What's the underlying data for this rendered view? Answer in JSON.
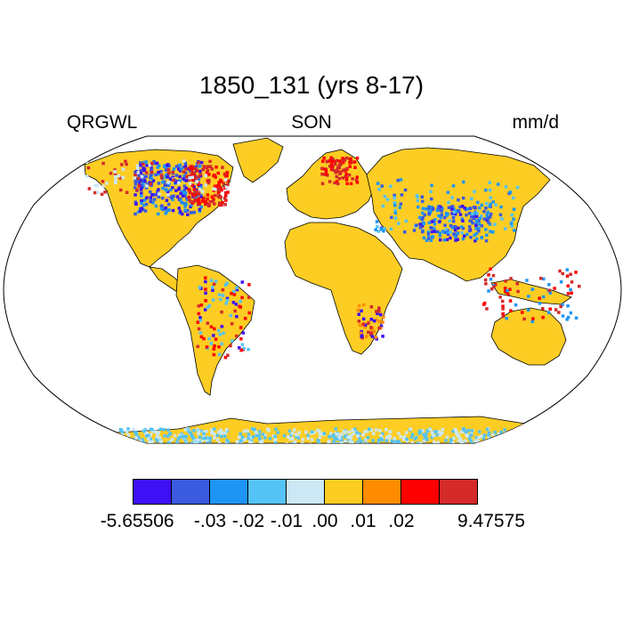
{
  "title": "1850_131 (yrs 8-17)",
  "left_label": "QRGWL",
  "center_label": "SON",
  "right_label": "mm/d",
  "colorbar": {
    "colors": [
      "#3d10f5",
      "#3a5ae0",
      "#1e95f5",
      "#55c3f5",
      "#cce8f5",
      "#fdcd24",
      "#ff8c00",
      "#ff0000",
      "#d42a2a"
    ],
    "labels": [
      "-5.65506",
      "-.03",
      "-.02",
      "-.01",
      ".00",
      ".01",
      ".02",
      "9.47575"
    ]
  },
  "map": {
    "projection": "Robinson",
    "background_color": "#ffffff",
    "dominant_land_color": "#fdcd24"
  }
}
